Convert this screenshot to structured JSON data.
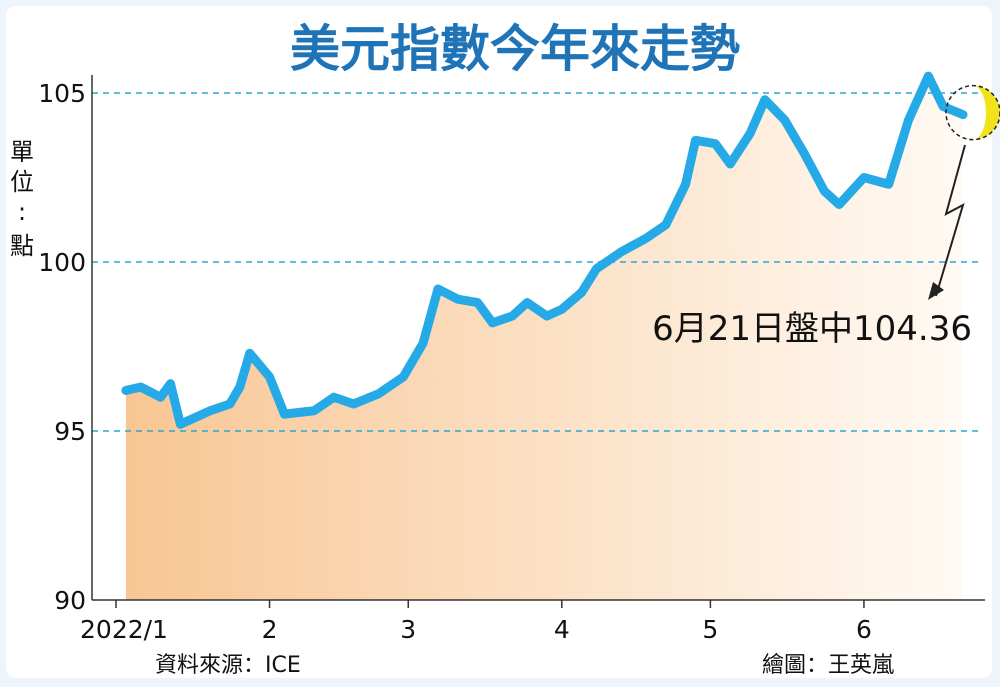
{
  "chart_data": {
    "type": "line",
    "title": "美元指數今年來走勢",
    "ylabel": "單位：點",
    "ylim": [
      90,
      106
    ],
    "yticks": [
      "90",
      "95",
      "100",
      "105"
    ],
    "xticks": [
      "2022/1",
      "2",
      "3",
      "4",
      "5",
      "6"
    ],
    "grid": "horizontal dashed at 95, 100, 105",
    "series": [
      {
        "values": [
          [
            "2022-01-03",
            96.2
          ],
          [
            "2022-01-06",
            96.3
          ],
          [
            "2022-01-10",
            96.0
          ],
          [
            "2022-01-12",
            96.4
          ],
          [
            "2022-01-14",
            95.2
          ],
          [
            "2022-01-20",
            95.6
          ],
          [
            "2022-01-24",
            95.8
          ],
          [
            "2022-01-26",
            96.3
          ],
          [
            "2022-01-28",
            97.3
          ],
          [
            "2022-02-01",
            96.6
          ],
          [
            "2022-02-04",
            95.5
          ],
          [
            "2022-02-10",
            95.6
          ],
          [
            "2022-02-14",
            96.0
          ],
          [
            "2022-02-18",
            95.8
          ],
          [
            "2022-02-23",
            96.1
          ],
          [
            "2022-02-28",
            96.6
          ],
          [
            "2022-03-04",
            97.6
          ],
          [
            "2022-03-07",
            99.2
          ],
          [
            "2022-03-11",
            98.9
          ],
          [
            "2022-03-15",
            98.8
          ],
          [
            "2022-03-18",
            98.2
          ],
          [
            "2022-03-22",
            98.4
          ],
          [
            "2022-03-25",
            98.8
          ],
          [
            "2022-03-29",
            98.4
          ],
          [
            "2022-04-01",
            98.6
          ],
          [
            "2022-04-05",
            99.1
          ],
          [
            "2022-04-08",
            99.8
          ],
          [
            "2022-04-13",
            100.3
          ],
          [
            "2022-04-18",
            100.7
          ],
          [
            "2022-04-22",
            101.1
          ],
          [
            "2022-04-26",
            102.3
          ],
          [
            "2022-04-28",
            103.6
          ],
          [
            "2022-05-02",
            103.5
          ],
          [
            "2022-05-05",
            102.9
          ],
          [
            "2022-05-09",
            103.8
          ],
          [
            "2022-05-12",
            104.8
          ],
          [
            "2022-05-16",
            104.2
          ],
          [
            "2022-05-20",
            103.2
          ],
          [
            "2022-05-24",
            102.1
          ],
          [
            "2022-05-27",
            101.7
          ],
          [
            "2022-06-01",
            102.5
          ],
          [
            "2022-06-06",
            102.3
          ],
          [
            "2022-06-10",
            104.2
          ],
          [
            "2022-06-14",
            105.5
          ],
          [
            "2022-06-17",
            104.6
          ],
          [
            "2022-06-21",
            104.36
          ]
        ]
      }
    ],
    "annotation": {
      "date": "2022-06-21",
      "value": 104.36,
      "text": "6月21日盤中104.36"
    }
  },
  "footer": {
    "source": "資料來源：ICE",
    "credit": "繪圖：王英嵐"
  },
  "colors": {
    "line": "#25aae7",
    "title": "#1f73b7",
    "grid": "#2ba8cf",
    "fill_start": "#f8c694",
    "fill_end": "#fffaf4",
    "highlight": "#f2e21a"
  }
}
